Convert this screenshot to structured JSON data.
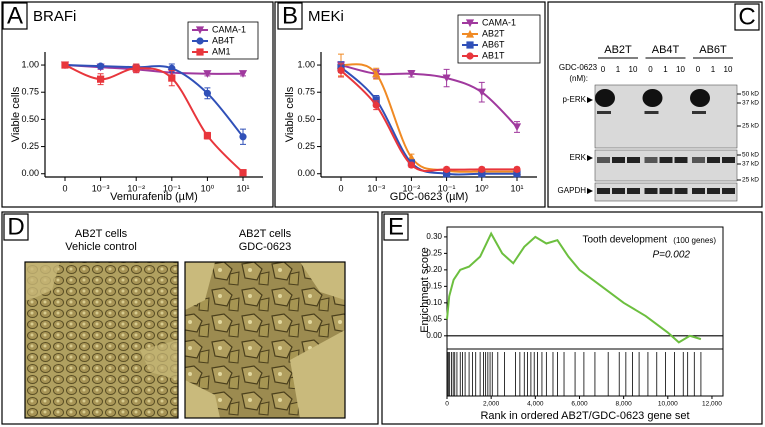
{
  "chart_data": [
    {
      "type": "line",
      "panel": "A",
      "title": "BRAFi",
      "categories": [
        "0",
        "10⁻³",
        "10⁻²",
        "10⁻¹",
        "10⁰",
        "10¹"
      ],
      "xlabel": "Vemurafenib (µM)",
      "ylabel": "Viable cells",
      "ylim": [
        -0.03,
        1.12
      ],
      "yticks": [
        {
          "value": 0,
          "label": "0.00"
        },
        {
          "value": 0.25,
          "label": "0.25"
        },
        {
          "value": 0.5,
          "label": "0.50"
        },
        {
          "value": 0.75,
          "label": "0.75"
        },
        {
          "value": 1,
          "label": "1.00"
        }
      ],
      "smooth": true,
      "legend": "upper right",
      "series": [
        {
          "name": "CAMA-1",
          "color": "#a0399e",
          "marker": "triangle-down",
          "values": [
            1.0,
            0.98,
            0.96,
            0.93,
            0.92,
            0.92
          ],
          "errors": [
            0.02,
            0.02,
            0.03,
            0.02,
            0.02,
            0.02
          ]
        },
        {
          "name": "AB4T",
          "color": "#3050b8",
          "marker": "circle",
          "values": [
            1.0,
            0.99,
            0.98,
            0.97,
            0.74,
            0.34
          ],
          "errors": [
            0.02,
            0.02,
            0.03,
            0.04,
            0.05,
            0.07
          ]
        },
        {
          "name": "AM1",
          "color": "#e8363c",
          "marker": "square",
          "values": [
            1.0,
            0.87,
            0.97,
            0.88,
            0.35,
            0.01
          ],
          "errors": [
            0.02,
            0.05,
            0.04,
            0.07,
            0.03,
            0.02
          ]
        }
      ]
    },
    {
      "type": "line",
      "panel": "B",
      "title": "MEKi",
      "categories": [
        "0",
        "10⁻³",
        "10⁻²",
        "10⁻¹",
        "10⁰",
        "10¹"
      ],
      "xlabel": "GDC-0623 (µM)",
      "ylabel": "Viable cells",
      "ylim": [
        -0.03,
        1.12
      ],
      "yticks": [
        {
          "value": 0,
          "label": "0.00"
        },
        {
          "value": 0.25,
          "label": "0.25"
        },
        {
          "value": 0.5,
          "label": "0.50"
        },
        {
          "value": 0.75,
          "label": "0.75"
        },
        {
          "value": 1,
          "label": "1.00"
        }
      ],
      "smooth": true,
      "legend": "upper right",
      "series": [
        {
          "name": "CAMA-1",
          "color": "#a0399e",
          "marker": "triangle-down",
          "values": [
            1.0,
            0.92,
            0.92,
            0.88,
            0.75,
            0.43
          ],
          "errors": [
            0.03,
            0.04,
            0.03,
            0.08,
            0.09,
            0.05
          ]
        },
        {
          "name": "AB2T",
          "color": "#f08a24",
          "marker": "triangle-up",
          "values": [
            1.0,
            0.92,
            0.15,
            0.03,
            0.02,
            0.02
          ],
          "errors": [
            0.1,
            0.05,
            0.03,
            0.02,
            0.02,
            0.02
          ]
        },
        {
          "name": "AB6T",
          "color": "#3050b8",
          "marker": "square",
          "values": [
            0.98,
            0.68,
            0.1,
            0.0,
            0.0,
            0.0
          ],
          "errors": [
            0.05,
            0.04,
            0.02,
            0.01,
            0.01,
            0.01
          ]
        },
        {
          "name": "AB1T",
          "color": "#e8363c",
          "marker": "circle",
          "values": [
            0.95,
            0.63,
            0.08,
            0.04,
            0.04,
            0.04
          ],
          "errors": [
            0.06,
            0.04,
            0.02,
            0.02,
            0.02,
            0.02
          ]
        }
      ]
    },
    {
      "type": "enrichment",
      "panel": "E",
      "x": [
        0,
        100,
        300,
        600,
        1000,
        1500,
        2000,
        2500,
        3000,
        3500,
        4000,
        4500,
        5000,
        5500,
        6000,
        7000,
        8000,
        9000,
        10000,
        10500,
        11000,
        11500
      ],
      "values": [
        0.05,
        0.12,
        0.17,
        0.2,
        0.21,
        0.24,
        0.31,
        0.25,
        0.22,
        0.27,
        0.3,
        0.28,
        0.29,
        0.24,
        0.2,
        0.15,
        0.1,
        0.06,
        0.01,
        -0.02,
        0.0,
        -0.01
      ],
      "color": "#6cbf3f",
      "hits": [
        20,
        60,
        120,
        200,
        280,
        350,
        450,
        600,
        700,
        820,
        1000,
        1150,
        1300,
        1500,
        1650,
        1750,
        1850,
        1950,
        2050,
        2300,
        2600,
        3100,
        3300,
        3500,
        3650,
        3800,
        3950,
        4100,
        4300,
        4500,
        4800,
        5000,
        5300,
        5800,
        6200,
        6700,
        7300,
        7800,
        8100,
        8400,
        8700,
        9100,
        9500,
        9900,
        10300,
        10700,
        10900,
        11200,
        11500
      ],
      "xlim": [
        0,
        12500
      ],
      "xticks": [
        0,
        {
          "value": 2000,
          "label": "2,000"
        },
        {
          "value": 4000,
          "label": "4,000"
        },
        {
          "value": 6000,
          "label": "6,000"
        },
        {
          "value": 8000,
          "label": "8,000"
        },
        {
          "value": 10000,
          "label": "10,000"
        },
        {
          "value": 12000,
          "label": "12,000"
        }
      ],
      "ylim": [
        -0.04,
        0.33
      ],
      "yticks": [
        {
          "value": 0,
          "label": "0.00"
        },
        {
          "value": 0.05,
          "label": "0.05"
        },
        {
          "value": 0.1,
          "label": "0.10"
        },
        {
          "value": 0.15,
          "label": "0.15"
        },
        {
          "value": 0.2,
          "label": "0.20"
        },
        {
          "value": 0.25,
          "label": "0.25"
        },
        {
          "value": 0.3,
          "label": "0.30"
        }
      ],
      "xlabel": "Rank in ordered AB2T/GDC-0623 gene set",
      "ylabel": "Enrichment score",
      "gene_set": "Tooth development",
      "gene_count": "(100 genes)",
      "p_value": "P=0.002"
    }
  ],
  "blot": {
    "panel": "C",
    "treatment": "GDC-0623",
    "unit": "(nM):",
    "cell_lines": [
      "AB2T",
      "AB4T",
      "AB6T"
    ],
    "doses": [
      "0",
      "1",
      "10"
    ],
    "rows": [
      {
        "name": "p-ERK",
        "markers": [
          "50 kD",
          "37 kD",
          "25 kD"
        ]
      },
      {
        "name": "ERK",
        "markers": [
          "50 kD",
          "37 kD",
          "25 kD"
        ]
      },
      {
        "name": "GAPDH",
        "markers": []
      }
    ]
  },
  "micrographs": {
    "panel": "D",
    "images": [
      {
        "title": [
          "AB2T cells",
          "Vehicle control"
        ]
      },
      {
        "title": [
          "AB2T cells",
          "GDC-0623"
        ]
      }
    ]
  }
}
